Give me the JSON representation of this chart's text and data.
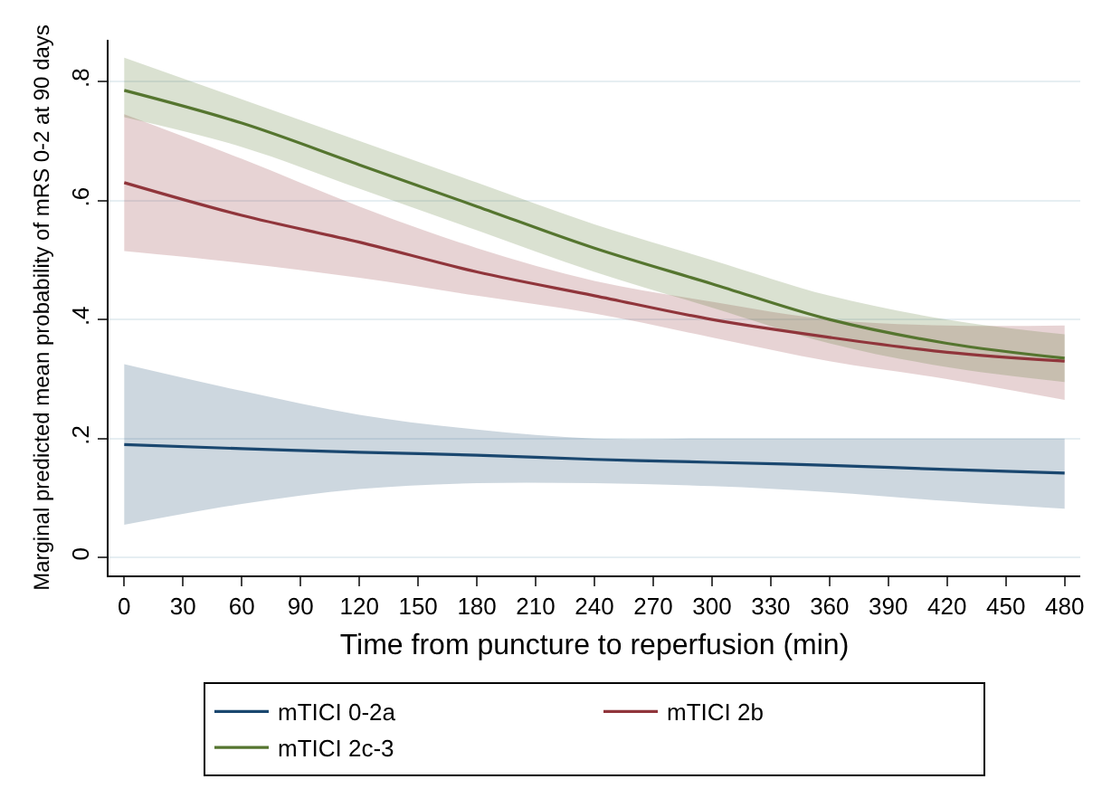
{
  "chart_data": {
    "type": "line",
    "xlabel": "Time from puncture to reperfusion (min)",
    "ylabel": "Marginal predicted mean probability of mRS 0-2 at 90 days",
    "x": [
      0,
      60,
      120,
      180,
      240,
      300,
      360,
      420,
      480
    ],
    "series": [
      {
        "name": "mTICI 0-2a",
        "color": "#1a476f",
        "values": [
          0.19,
          0.183,
          0.177,
          0.172,
          0.165,
          0.16,
          0.155,
          0.148,
          0.142
        ],
        "lower": [
          0.055,
          0.09,
          0.115,
          0.125,
          0.125,
          0.12,
          0.11,
          0.095,
          0.082
        ],
        "upper": [
          0.325,
          0.28,
          0.24,
          0.215,
          0.2,
          0.2,
          0.2,
          0.2,
          0.2
        ]
      },
      {
        "name": "mTICI 2b",
        "color": "#90353b",
        "values": [
          0.63,
          0.575,
          0.53,
          0.48,
          0.44,
          0.4,
          0.37,
          0.345,
          0.33
        ],
        "lower": [
          0.515,
          0.495,
          0.47,
          0.44,
          0.41,
          0.37,
          0.33,
          0.3,
          0.265
        ],
        "upper": [
          0.745,
          0.67,
          0.59,
          0.52,
          0.465,
          0.43,
          0.4,
          0.39,
          0.39
        ]
      },
      {
        "name": "mTICI 2c-3",
        "color": "#55752f",
        "values": [
          0.785,
          0.73,
          0.66,
          0.59,
          0.52,
          0.46,
          0.4,
          0.36,
          0.335
        ],
        "lower": [
          0.74,
          0.69,
          0.62,
          0.55,
          0.48,
          0.42,
          0.36,
          0.32,
          0.295
        ],
        "upper": [
          0.84,
          0.77,
          0.7,
          0.63,
          0.56,
          0.5,
          0.44,
          0.4,
          0.375
        ]
      }
    ],
    "xlim": [
      -8,
      488
    ],
    "ylim": [
      -0.03,
      0.87
    ],
    "xticks": [
      0,
      30,
      60,
      90,
      120,
      150,
      180,
      210,
      240,
      270,
      300,
      330,
      360,
      390,
      420,
      450,
      480
    ],
    "yticks": [
      0,
      {
        "value": 0.2,
        "label": ".2"
      },
      {
        "value": 0.4,
        "label": ".4"
      },
      {
        "value": 0.6,
        "label": ".6"
      },
      {
        "value": 0.8,
        "label": ".8"
      }
    ],
    "grid": "y",
    "legend": "bottom",
    "line_style": "solid",
    "marker": "none"
  }
}
